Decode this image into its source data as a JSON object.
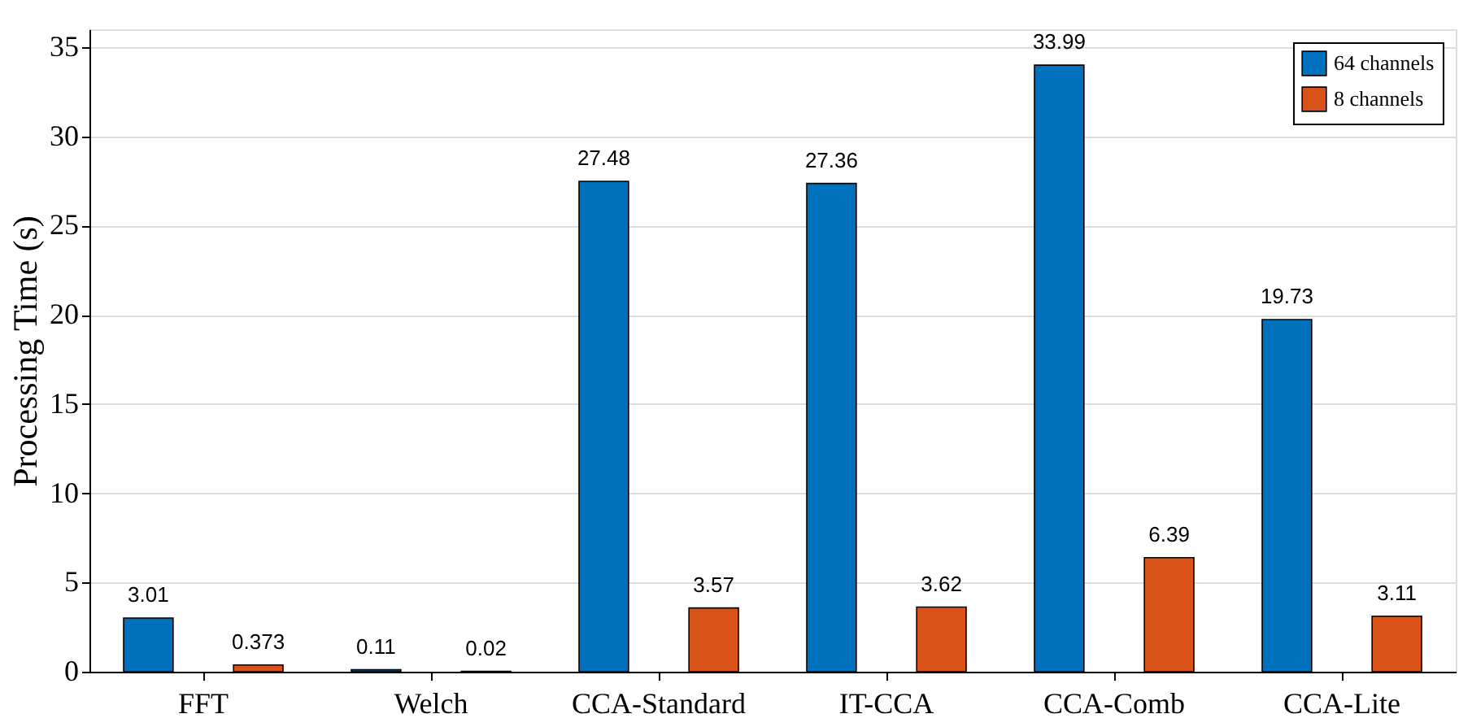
{
  "chart_data": {
    "type": "bar",
    "ylabel": "Processing Time (s)",
    "categories": [
      "FFT",
      "Welch",
      "CCA-Standard",
      "IT-CCA",
      "CCA-Comb",
      "CCA-Lite"
    ],
    "series": [
      {
        "name": "64 channels",
        "color": "#0072bd",
        "values": [
          3.01,
          0.11,
          27.48,
          27.36,
          33.99,
          19.73
        ]
      },
      {
        "name": "8 channels",
        "color": "#d95319",
        "values": [
          0.373,
          0.02,
          3.57,
          3.62,
          6.39,
          3.11
        ]
      }
    ],
    "ylim": [
      0,
      36
    ],
    "yticks": [
      0,
      5,
      10,
      15,
      20,
      25,
      30,
      35
    ],
    "grid": true,
    "legend": "top right",
    "data_labels": true
  }
}
